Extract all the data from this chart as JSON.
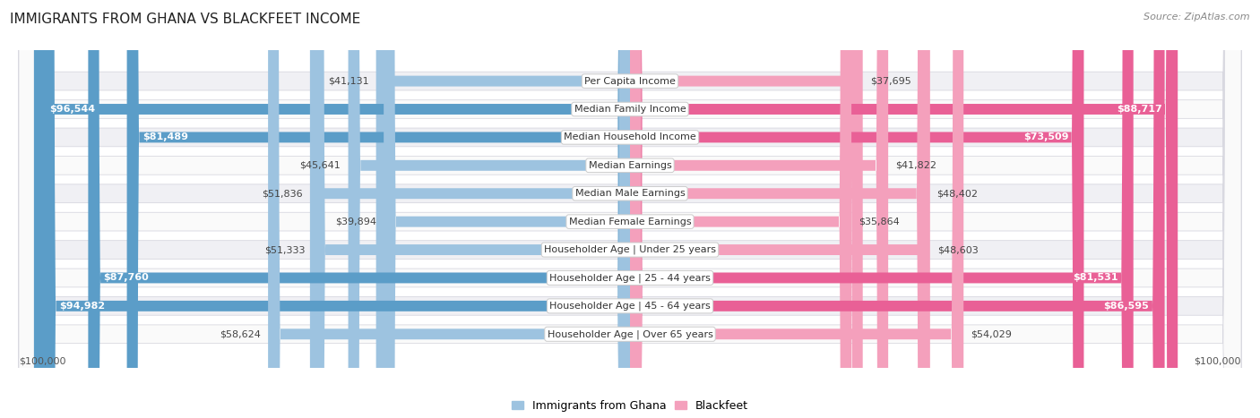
{
  "title": "IMMIGRANTS FROM GHANA VS BLACKFEET INCOME",
  "source": "Source: ZipAtlas.com",
  "categories": [
    "Per Capita Income",
    "Median Family Income",
    "Median Household Income",
    "Median Earnings",
    "Median Male Earnings",
    "Median Female Earnings",
    "Householder Age | Under 25 years",
    "Householder Age | 25 - 44 years",
    "Householder Age | 45 - 64 years",
    "Householder Age | Over 65 years"
  ],
  "ghana_values": [
    41131,
    96544,
    81489,
    45641,
    51836,
    39894,
    51333,
    87760,
    94982,
    58624
  ],
  "blackfeet_values": [
    37695,
    88717,
    73509,
    41822,
    48402,
    35864,
    48603,
    81531,
    86595,
    54029
  ],
  "max_value": 100000,
  "ghana_color_light": "#9dc3e0",
  "ghana_color_dark": "#5b9dc8",
  "blackfeet_color_light": "#f4a0bc",
  "blackfeet_color_dark": "#e96096",
  "background_color": "#ffffff",
  "row_bg_odd": "#f0f0f4",
  "row_bg_even": "#fafafa",
  "ghana_dark_rows": [
    1,
    2,
    7,
    8
  ],
  "blackfeet_dark_rows": [
    1,
    2,
    7,
    8
  ],
  "title_fontsize": 11,
  "source_fontsize": 8,
  "value_fontsize": 8,
  "category_fontsize": 8,
  "legend_fontsize": 9,
  "axis_label_fontsize": 8
}
